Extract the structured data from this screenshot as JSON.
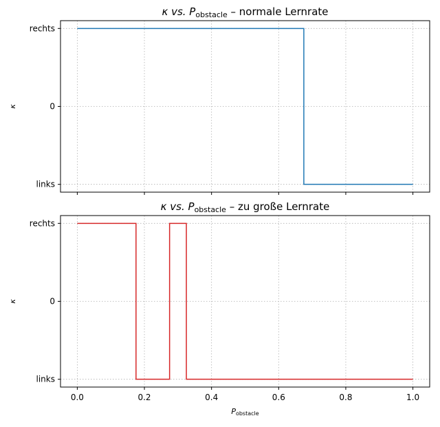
{
  "chart_data": [
    {
      "type": "line",
      "step": "post",
      "title_main": "κ vs. P",
      "title_sub": "obstacle",
      "title_rest": " – normale Lernrate",
      "ylabel": "κ",
      "xlabel_main": "",
      "xlabel_sub": "",
      "xlim": [
        -0.05,
        1.05
      ],
      "ylim": [
        -1.1,
        1.1
      ],
      "xticks": [
        0.0,
        0.2,
        0.4,
        0.6,
        0.8,
        1.0
      ],
      "xtick_labels": [],
      "yticks": [
        -1,
        0,
        1
      ],
      "ytick_labels": [
        "links",
        "0",
        "rechts"
      ],
      "grid": true,
      "series": [
        {
          "color": "#1f77b4",
          "x": [
            0.0,
            0.675,
            1.0
          ],
          "y": [
            1,
            -1,
            -1
          ]
        }
      ]
    },
    {
      "type": "line",
      "step": "post",
      "title_main": "κ vs. P",
      "title_sub": "obstacle",
      "title_rest": " – zu große Lernrate",
      "ylabel": "κ",
      "xlabel_main": "P",
      "xlabel_sub": "obstacle",
      "xlim": [
        -0.05,
        1.05
      ],
      "ylim": [
        -1.1,
        1.1
      ],
      "xticks": [
        0.0,
        0.2,
        0.4,
        0.6,
        0.8,
        1.0
      ],
      "xtick_labels": [
        "0.0",
        "0.2",
        "0.4",
        "0.6",
        "0.8",
        "1.0"
      ],
      "yticks": [
        -1,
        0,
        1
      ],
      "ytick_labels": [
        "links",
        "0",
        "rechts"
      ],
      "grid": true,
      "series": [
        {
          "color": "#d62728",
          "x": [
            0.0,
            0.175,
            0.275,
            0.325,
            1.0
          ],
          "y": [
            1,
            -1,
            1,
            -1,
            -1
          ]
        }
      ]
    }
  ]
}
